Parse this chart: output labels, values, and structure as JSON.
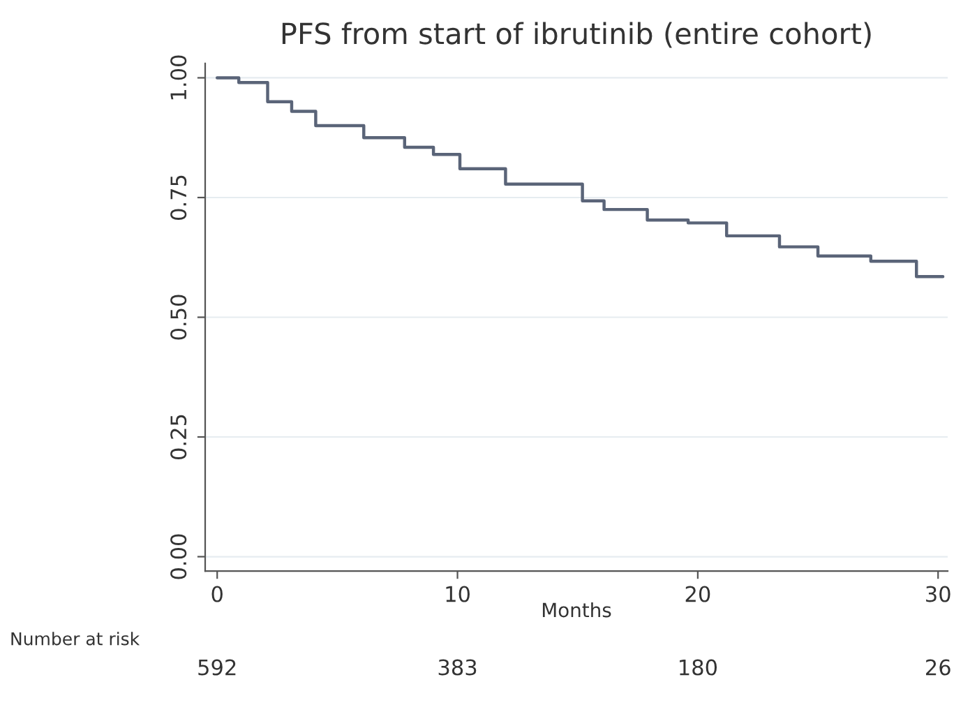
{
  "chart_data": {
    "type": "step",
    "title": "PFS from start of ibrutinib (entire cohort)",
    "xlabel": "Months",
    "x": [
      0,
      0.9,
      2.1,
      3.1,
      4.1,
      6.1,
      7.8,
      9.0,
      10.1,
      12.0,
      15.2,
      16.1,
      17.9,
      19.6,
      21.2,
      23.4,
      25.0,
      27.2,
      29.1,
      30.2
    ],
    "series": [
      {
        "color": "#5a6478",
        "values": [
          1.0,
          0.99,
          0.95,
          0.93,
          0.9,
          0.875,
          0.855,
          0.84,
          0.81,
          0.778,
          0.743,
          0.725,
          0.703,
          0.697,
          0.67,
          0.647,
          0.628,
          0.617,
          0.585,
          0.585
        ]
      }
    ],
    "xlim": [
      -0.5,
      30.4
    ],
    "ylim": [
      -0.03,
      1.03
    ],
    "xticks": [
      0,
      10,
      20,
      30
    ],
    "yticks": [
      {
        "value": 0,
        "label": "0.00"
      },
      {
        "value": 0.25,
        "label": "0.25"
      },
      {
        "value": 0.5,
        "label": "0.50"
      },
      {
        "value": 0.75,
        "label": "0.75"
      },
      {
        "value": 1,
        "label": "1.00"
      }
    ],
    "grid": "y",
    "line_style": "solid",
    "marker": "none",
    "annotations": [
      "Number at risk",
      "592",
      "383",
      "180",
      "26"
    ]
  }
}
